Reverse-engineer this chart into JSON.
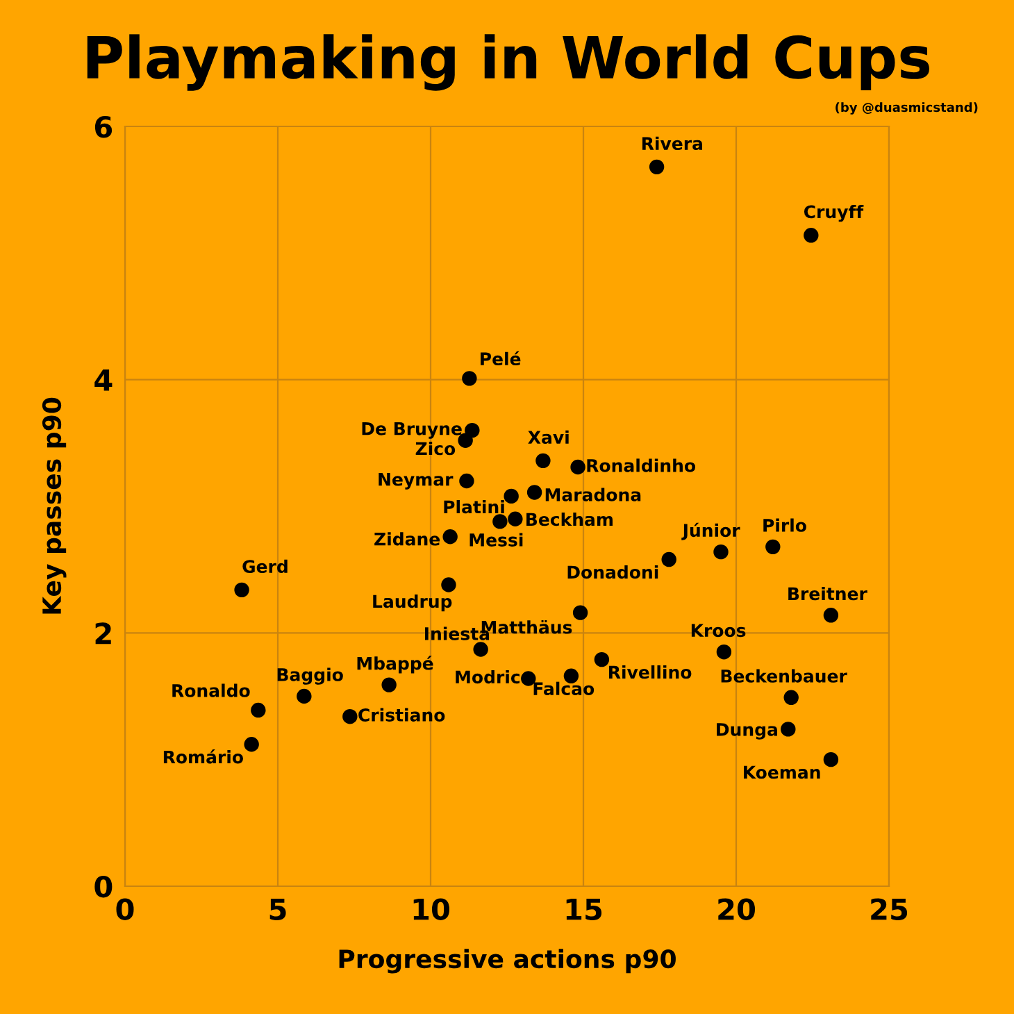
{
  "chart_data": {
    "type": "scatter",
    "title": "Playmaking in World Cups",
    "xlabel": "Progressive actions p90",
    "ylabel": "Key passes p90",
    "xlim": [
      0,
      25
    ],
    "xticks": [
      0,
      5,
      10,
      15,
      20,
      25
    ],
    "ylim": [
      0,
      6
    ],
    "yticks": [
      0,
      2,
      4,
      6
    ],
    "grid": true,
    "marker": "circle",
    "series": [
      {
        "color": "#000000",
        "x": [
          17.4,
          22.45,
          11.27,
          11.36,
          11.14,
          11.18,
          13.68,
          14.82,
          12.64,
          13.4,
          12.27,
          12.77,
          10.64,
          19.5,
          21.2,
          17.8,
          3.82,
          10.59,
          23.1,
          14.9,
          19.6,
          11.64,
          15.6,
          13.2,
          14.6,
          8.64,
          5.86,
          4.36,
          7.36,
          4.14,
          21.8,
          21.7,
          23.1
        ],
        "values": [
          5.68,
          5.14,
          4.01,
          3.6,
          3.52,
          3.2,
          3.36,
          3.31,
          3.08,
          3.11,
          2.88,
          2.9,
          2.76,
          2.64,
          2.68,
          2.58,
          2.34,
          2.38,
          2.14,
          2.16,
          1.85,
          1.87,
          1.79,
          1.64,
          1.66,
          1.59,
          1.5,
          1.39,
          1.34,
          1.12,
          1.49,
          1.24,
          1.0
        ]
      }
    ],
    "annotations": [
      {
        "text": "Rivera",
        "x": 17.4,
        "y": 5.68
      },
      {
        "text": "Cruyff",
        "x": 22.45,
        "y": 5.14
      },
      {
        "text": "Pelé",
        "x": 11.27,
        "y": 4.01
      },
      {
        "text": "De Bruyne",
        "x": 11.36,
        "y": 3.6
      },
      {
        "text": "Zico",
        "x": 11.14,
        "y": 3.52
      },
      {
        "text": "Neymar",
        "x": 11.18,
        "y": 3.2
      },
      {
        "text": "Xavi",
        "x": 13.68,
        "y": 3.36
      },
      {
        "text": "Ronaldinho",
        "x": 14.82,
        "y": 3.31
      },
      {
        "text": "Platini",
        "x": 12.64,
        "y": 3.08
      },
      {
        "text": "Maradona",
        "x": 13.4,
        "y": 3.11
      },
      {
        "text": "Messi",
        "x": 12.27,
        "y": 2.88
      },
      {
        "text": "Beckham",
        "x": 12.77,
        "y": 2.9
      },
      {
        "text": "Zidane",
        "x": 10.64,
        "y": 2.76
      },
      {
        "text": "Júnior",
        "x": 19.5,
        "y": 2.64
      },
      {
        "text": "Pirlo",
        "x": 21.2,
        "y": 2.68
      },
      {
        "text": "Donadoni",
        "x": 17.8,
        "y": 2.58
      },
      {
        "text": "Gerd",
        "x": 3.82,
        "y": 2.34
      },
      {
        "text": "Laudrup",
        "x": 10.59,
        "y": 2.38
      },
      {
        "text": "Breitner",
        "x": 23.1,
        "y": 2.14
      },
      {
        "text": "Matthäus",
        "x": 14.9,
        "y": 2.16
      },
      {
        "text": "Kroos",
        "x": 19.6,
        "y": 1.85
      },
      {
        "text": "Iniesta",
        "x": 11.64,
        "y": 1.87
      },
      {
        "text": "Rivellino",
        "x": 15.6,
        "y": 1.79
      },
      {
        "text": "Modric",
        "x": 13.2,
        "y": 1.64
      },
      {
        "text": "Falcao",
        "x": 14.6,
        "y": 1.66
      },
      {
        "text": "Mbappé",
        "x": 8.64,
        "y": 1.59
      },
      {
        "text": "Baggio",
        "x": 5.86,
        "y": 1.5
      },
      {
        "text": "Ronaldo",
        "x": 4.36,
        "y": 1.39
      },
      {
        "text": "Cristiano",
        "x": 7.36,
        "y": 1.34
      },
      {
        "text": "Romário",
        "x": 4.14,
        "y": 1.12
      },
      {
        "text": "Beckenbauer",
        "x": 21.8,
        "y": 1.49
      },
      {
        "text": "Dunga",
        "x": 21.7,
        "y": 1.24
      },
      {
        "text": "Koeman",
        "x": 23.1,
        "y": 1.0
      },
      "(by @duasmicstand)"
    ]
  }
}
